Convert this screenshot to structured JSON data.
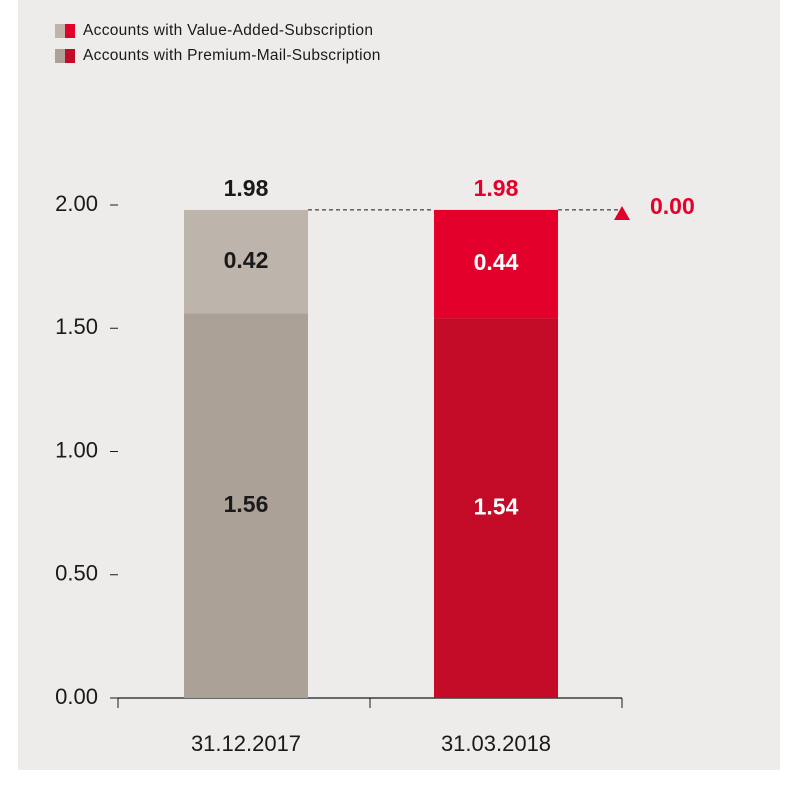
{
  "chart_data": {
    "type": "stacked-bar",
    "categories": [
      "31.12.2017",
      "31.03.2018"
    ],
    "series": [
      {
        "name": "Accounts with Premium-Mail-Subscription",
        "colors": [
          "#aba197",
          "#c30a27"
        ],
        "values": [
          1.56,
          1.54
        ]
      },
      {
        "name": "Accounts with Value-Added-Subscription",
        "colors": [
          "#bdb4ab",
          "#e3002b"
        ],
        "values": [
          0.42,
          0.44
        ]
      }
    ],
    "totals": [
      1.98,
      1.98
    ],
    "change": {
      "value": 0,
      "label": "0.00"
    },
    "ylim": [
      0,
      2
    ],
    "yticks": [
      {
        "value": 0,
        "label": "0.00"
      },
      {
        "value": 0.5,
        "label": "0.50"
      },
      {
        "value": 1,
        "label": "1.00"
      },
      {
        "value": 1.5,
        "label": "1.50"
      },
      {
        "value": 2,
        "label": "2.00"
      }
    ]
  }
}
